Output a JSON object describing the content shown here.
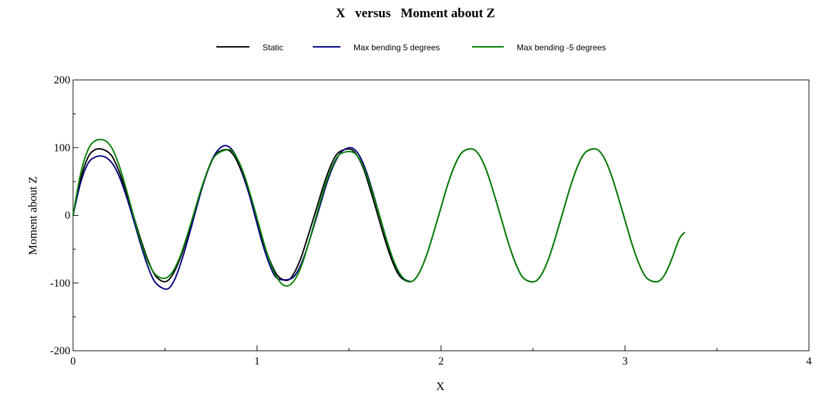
{
  "chart_data": {
    "type": "line",
    "title": "X   versus   Moment about Z",
    "xlabel": "X",
    "ylabel": "Moment about Z",
    "xlim": [
      0,
      4
    ],
    "ylim": [
      -200,
      200
    ],
    "x_ticks": [
      0,
      1,
      2,
      3,
      4
    ],
    "x_tick_labels": [
      "0",
      "1",
      "2",
      "3",
      "4"
    ],
    "y_ticks": [
      -200,
      -100,
      0,
      100,
      200
    ],
    "y_tick_labels": [
      "-200",
      "-100",
      "0",
      "100",
      "200"
    ],
    "grid": false,
    "legend_position": "top-center",
    "series": [
      {
        "name": "Static",
        "color": "#000000",
        "x": [
          0,
          0.04,
          0.08,
          0.12,
          0.166,
          0.21,
          0.25,
          0.29,
          0.33,
          0.37,
          0.41,
          0.45,
          0.5,
          0.54,
          0.58,
          0.62,
          0.66,
          0.7,
          0.74,
          0.78,
          0.835,
          0.875,
          0.915,
          0.955,
          0.995,
          1.035,
          1.075,
          1.115,
          1.165,
          1.2,
          1.24,
          1.28,
          1.32,
          1.36,
          1.4,
          1.44,
          1.5,
          1.54,
          1.58,
          1.62,
          1.66,
          1.7,
          1.74,
          1.78,
          1.835,
          1.875,
          1.915,
          1.955,
          1.995,
          2.035,
          2.075,
          2.115,
          2.17,
          2.21,
          2.25,
          2.29,
          2.33,
          2.37,
          2.41,
          2.45,
          2.505,
          2.545,
          2.585,
          2.625,
          2.665,
          2.705,
          2.745,
          2.785,
          2.84,
          2.88,
          2.92,
          2.96,
          3.0,
          3.04,
          3.08,
          3.12,
          3.175,
          3.215,
          3.255,
          3.295,
          3.325
        ],
        "y": [
          0,
          52,
          85,
          97,
          97,
          88,
          65,
          33,
          -2,
          -37,
          -68,
          -90,
          -98,
          -88,
          -65,
          -33,
          3,
          40,
          71,
          91,
          97,
          88,
          65,
          33,
          -3,
          -40,
          -70,
          -90,
          -96,
          -86,
          -62,
          -28,
          7,
          43,
          73,
          92,
          98,
          90,
          68,
          34,
          -3,
          -40,
          -71,
          -91,
          -98,
          -88,
          -64,
          -30,
          7,
          44,
          74,
          93,
          98,
          88,
          64,
          30,
          -7,
          -44,
          -74,
          -93,
          -98,
          -88,
          -64,
          -30,
          7,
          44,
          74,
          93,
          98,
          88,
          64,
          30,
          -7,
          -44,
          -74,
          -93,
          -98,
          -88,
          -64,
          -35,
          -25
        ]
      },
      {
        "name": "Max bending 5 degrees",
        "color": "#000080",
        "x": [
          0,
          0.04,
          0.08,
          0.12,
          0.166,
          0.21,
          0.25,
          0.29,
          0.33,
          0.37,
          0.41,
          0.45,
          0.51,
          0.55,
          0.59,
          0.63,
          0.67,
          0.71,
          0.75,
          0.79,
          0.83,
          0.87,
          0.91,
          0.95,
          0.99,
          1.03,
          1.07,
          1.11,
          1.18,
          1.22,
          1.26,
          1.3,
          1.34,
          1.38,
          1.42,
          1.46,
          1.51,
          1.55,
          1.59,
          1.63,
          1.67,
          1.71,
          1.75,
          1.79,
          1.835
        ],
        "y": [
          0,
          47,
          76,
          86,
          87,
          78,
          58,
          28,
          -8,
          -45,
          -78,
          -100,
          -109,
          -96,
          -67,
          -30,
          10,
          48,
          79,
          97,
          103,
          95,
          72,
          38,
          -2,
          -42,
          -74,
          -93,
          -94,
          -83,
          -58,
          -24,
          12,
          48,
          76,
          94,
          100,
          91,
          68,
          34,
          -4,
          -42,
          -73,
          -92,
          -98
        ]
      },
      {
        "name": "Max bending -5 degrees",
        "color": "#008000",
        "x": [
          0,
          0.04,
          0.08,
          0.12,
          0.17,
          0.21,
          0.25,
          0.29,
          0.33,
          0.37,
          0.41,
          0.45,
          0.5,
          0.54,
          0.58,
          0.62,
          0.66,
          0.7,
          0.74,
          0.78,
          0.85,
          0.89,
          0.93,
          0.97,
          1.01,
          1.05,
          1.09,
          1.13,
          1.17,
          1.21,
          1.25,
          1.29,
          1.33,
          1.37,
          1.41,
          1.45,
          1.51,
          1.55,
          1.59,
          1.63,
          1.67,
          1.71,
          1.75,
          1.79,
          1.835,
          1.875,
          1.915,
          1.955,
          1.995,
          2.035,
          2.075,
          2.115,
          2.17,
          2.21,
          2.25,
          2.29,
          2.33,
          2.37,
          2.41,
          2.45,
          2.505,
          2.545,
          2.585,
          2.625,
          2.665,
          2.705,
          2.745,
          2.785,
          2.84,
          2.88,
          2.92,
          2.96,
          3.0,
          3.04,
          3.08,
          3.12,
          3.175,
          3.215,
          3.255,
          3.295,
          3.325
        ],
        "y": [
          0,
          60,
          96,
          110,
          111,
          100,
          74,
          38,
          -2,
          -40,
          -70,
          -88,
          -93,
          -84,
          -62,
          -30,
          6,
          42,
          72,
          90,
          97,
          85,
          60,
          25,
          -14,
          -52,
          -82,
          -100,
          -104,
          -93,
          -68,
          -32,
          7,
          44,
          73,
          90,
          94,
          86,
          64,
          32,
          -4,
          -41,
          -72,
          -91,
          -98,
          -88,
          -64,
          -30,
          7,
          44,
          74,
          93,
          98,
          88,
          64,
          30,
          -7,
          -44,
          -74,
          -93,
          -98,
          -88,
          -64,
          -30,
          7,
          44,
          74,
          93,
          98,
          88,
          64,
          30,
          -7,
          -44,
          -74,
          -93,
          -98,
          -88,
          -64,
          -35,
          -25
        ]
      }
    ]
  }
}
